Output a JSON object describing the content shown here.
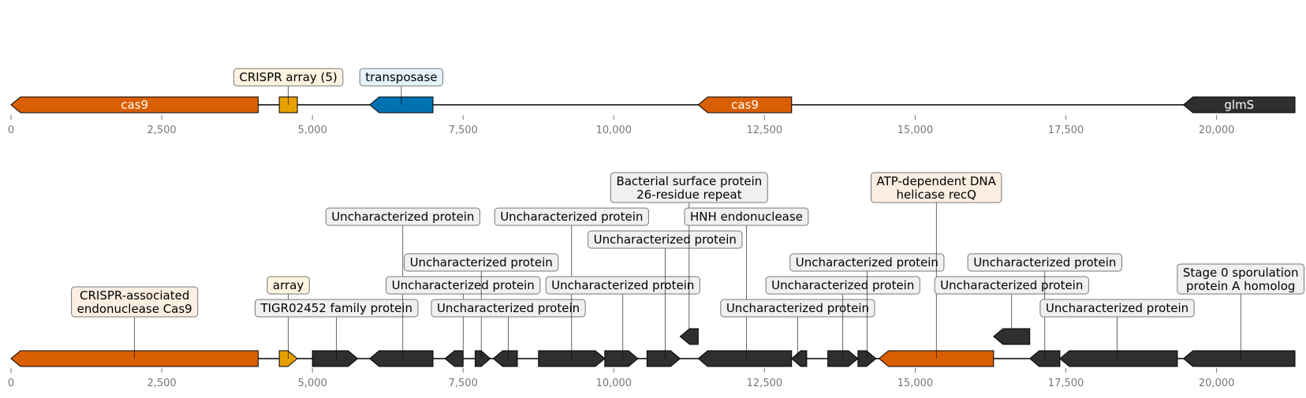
{
  "colors": {
    "cas9": "#d95f02",
    "crispr": "#e6a000",
    "transposase": "#0072b2",
    "other": "#2f2f2f",
    "box_default": "#f0f0f0",
    "box_crispr": "#fdf3e1",
    "box_transposase": "#e6f3fb",
    "box_cas9": "#fdeee2"
  },
  "axis": {
    "min": 0,
    "max": 21300,
    "ticks": [
      {
        "value": 0,
        "label": "0"
      },
      {
        "value": 2500,
        "label": "2,500"
      },
      {
        "value": 5000,
        "label": "5,000"
      },
      {
        "value": 7500,
        "label": "7,500"
      },
      {
        "value": 10000,
        "label": "10,000"
      },
      {
        "value": 12500,
        "label": "12,500"
      },
      {
        "value": 15000,
        "label": "15,000"
      },
      {
        "value": 17500,
        "label": "17,500"
      },
      {
        "value": 20000,
        "label": "20,000"
      }
    ]
  },
  "tracks": [
    {
      "name": "top-track",
      "features": [
        {
          "start": 0,
          "end": 4100,
          "strand": -1,
          "type": "cas9",
          "inner": "cas9"
        },
        {
          "start": 4450,
          "end": 4750,
          "strand": 0,
          "type": "crispr",
          "label": "CRISPR array (5)",
          "box": "box_crispr",
          "level": 0
        },
        {
          "start": 5950,
          "end": 7000,
          "strand": -1,
          "type": "transposase",
          "label": "transposase",
          "box": "box_transposase",
          "level": 0
        },
        {
          "start": 11400,
          "end": 12950,
          "strand": -1,
          "type": "cas9",
          "inner": "cas9"
        },
        {
          "start": 19450,
          "end": 21300,
          "strand": -1,
          "type": "other",
          "inner": "glmS"
        }
      ]
    },
    {
      "name": "bottom-track",
      "features": [
        {
          "start": 0,
          "end": 4100,
          "strand": -1,
          "type": "cas9",
          "label": "CRISPR-associated\nendonuclease Cas9",
          "box": "box_cas9",
          "level": 1,
          "lx": 2050
        },
        {
          "start": 4450,
          "end": 4750,
          "strand": 1,
          "type": "crispr",
          "label": "array",
          "box": "box_crispr",
          "level": 2
        },
        {
          "start": 5000,
          "end": 5750,
          "strand": 1,
          "type": "other",
          "label": "TIGR02452 family protein",
          "box": "box_default",
          "level": 1,
          "lx": 5400
        },
        {
          "start": 5950,
          "end": 7000,
          "strand": -1,
          "type": "other",
          "label": "Uncharacterized protein",
          "box": "box_default",
          "level": 5,
          "lx": 6500
        },
        {
          "start": 7000,
          "end": 7500,
          "strand": 0,
          "type": "none",
          "label": "Uncharacterized protein",
          "box": "box_default",
          "level": 2,
          "lx": 7500
        },
        {
          "start": 7200,
          "end": 7500,
          "strand": -1,
          "type": "other"
        },
        {
          "start": 7700,
          "end": 7950,
          "strand": 1,
          "type": "other",
          "label": "Uncharacterized protein",
          "box": "box_default",
          "level": 3,
          "lx": 7800
        },
        {
          "start": 8000,
          "end": 8400,
          "strand": -1,
          "type": "other",
          "label": "Uncharacterized protein",
          "box": "box_default",
          "level": 1,
          "lx": 8250
        },
        {
          "start": 8750,
          "end": 9850,
          "strand": 1,
          "type": "other",
          "label": "Uncharacterized protein",
          "box": "box_default",
          "level": 5,
          "lx": 9300
        },
        {
          "start": 9850,
          "end": 10400,
          "strand": 1,
          "type": "other",
          "label": "Uncharacterized protein",
          "box": "box_default",
          "level": 2,
          "lx": 10150
        },
        {
          "start": 10550,
          "end": 11100,
          "strand": 1,
          "type": "other",
          "label": "Uncharacterized protein",
          "box": "box_default",
          "level": 4,
          "lx": 10850
        },
        {
          "start": 11100,
          "end": 11400,
          "strand": -1,
          "type": "other",
          "raised": true,
          "label": "Bacterial surface protein\n26-residue repeat",
          "box": "box_default",
          "level": 6,
          "lx": 11250
        },
        {
          "start": 11400,
          "end": 12950,
          "strand": -1,
          "type": "other",
          "label": "HNH endonuclease",
          "box": "box_default",
          "level": 5,
          "lx": 12200
        },
        {
          "start": 12950,
          "end": 13200,
          "strand": -1,
          "type": "other",
          "label": "Uncharacterized protein",
          "box": "box_default",
          "level": 1,
          "lx": 13050
        },
        {
          "start": 13550,
          "end": 14050,
          "strand": 1,
          "type": "other",
          "label": "Uncharacterized protein",
          "box": "box_default",
          "level": 2,
          "lx": 13800
        },
        {
          "start": 14050,
          "end": 14350,
          "strand": 1,
          "type": "other",
          "label": "Uncharacterized protein",
          "box": "box_default",
          "level": 3,
          "lx": 14200
        },
        {
          "start": 14400,
          "end": 16300,
          "strand": -1,
          "type": "cas9",
          "label": "ATP-dependent DNA\nhelicase recQ",
          "box": "box_cas9",
          "level": 6,
          "lx": 15350
        },
        {
          "start": 16300,
          "end": 16900,
          "strand": -1,
          "type": "other",
          "raised": true,
          "label": "Uncharacterized protein",
          "box": "box_default",
          "level": 2,
          "lx": 16600
        },
        {
          "start": 16900,
          "end": 17400,
          "strand": -1,
          "type": "other",
          "label": "Uncharacterized protein",
          "box": "box_default",
          "level": 3,
          "lx": 17150
        },
        {
          "start": 17400,
          "end": 19350,
          "strand": -1,
          "type": "other",
          "label": "Uncharacterized protein",
          "box": "box_default",
          "level": 1,
          "lx": 18350
        },
        {
          "start": 19450,
          "end": 21300,
          "strand": -1,
          "type": "other",
          "label": "Stage 0 sporulation\nprotein A homolog",
          "box": "box_default",
          "level": 2,
          "lx": 20400
        }
      ]
    }
  ]
}
